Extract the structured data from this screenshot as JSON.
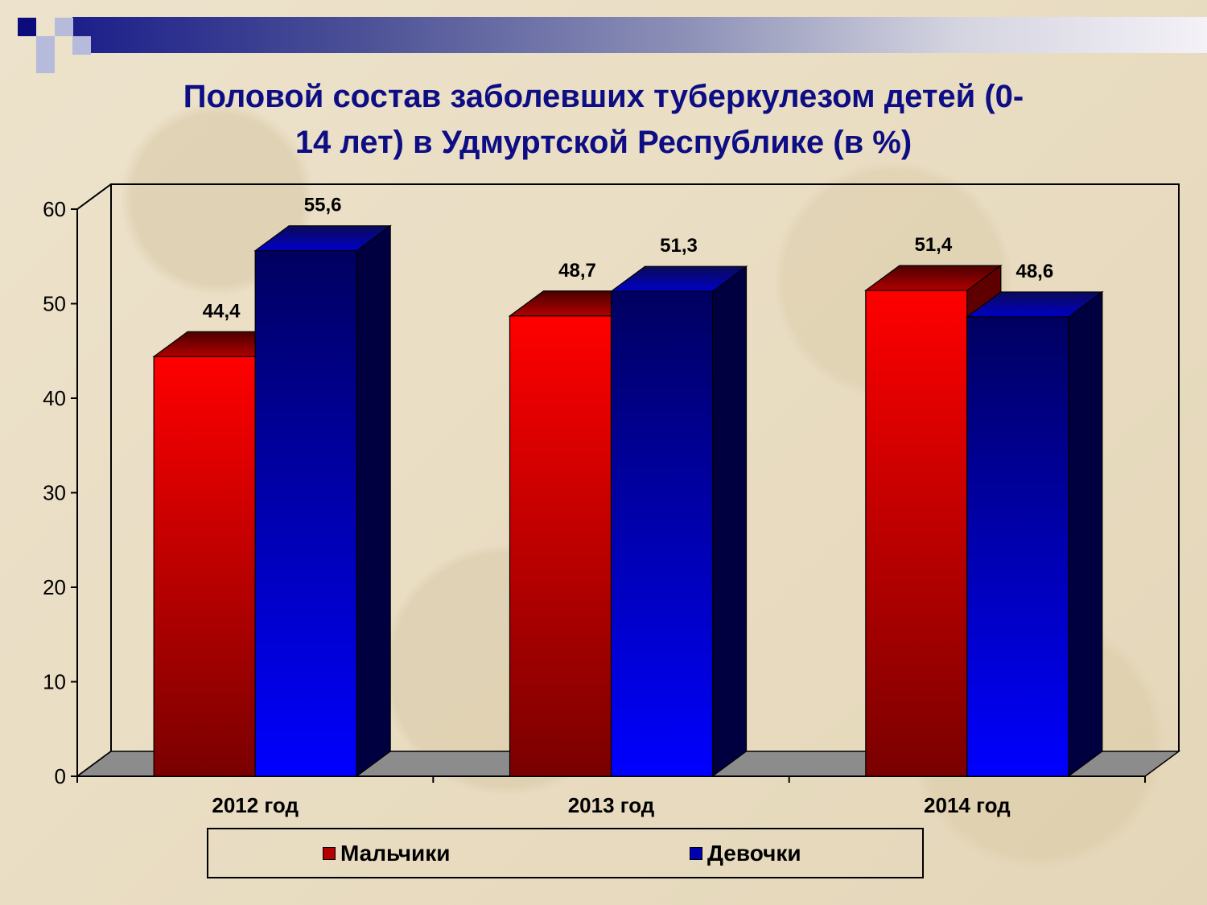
{
  "header": {
    "title": "Половой состав заболевших туберкулезом детей (0-\n14 лет) в Удмуртской Республике (в %)"
  },
  "chart_data": {
    "type": "bar",
    "categories": [
      "2012 год",
      "2013 год",
      "2014 год"
    ],
    "series": [
      {
        "name": "Мальчики",
        "values": [
          44.4,
          48.7,
          51.4
        ],
        "labels": [
          "44,4",
          "48,7",
          "51,4"
        ],
        "color": "#ff0000"
      },
      {
        "name": "Девочки",
        "values": [
          55.6,
          51.3,
          48.6
        ],
        "labels": [
          "55,6",
          "51,3",
          "48,6"
        ],
        "color": "#0000ff"
      }
    ],
    "ylim": [
      0,
      60
    ],
    "yticks": [
      0,
      10,
      20,
      30,
      40,
      50,
      60
    ],
    "legend": "bottom",
    "grid": false
  },
  "colors": {
    "boys_front": "#ff0000",
    "boys_dark": "#7a0000",
    "girls_front": "#0000ff",
    "girls_dark": "#000060",
    "title": "#0d0d84",
    "floor": "#8c8c8c"
  }
}
